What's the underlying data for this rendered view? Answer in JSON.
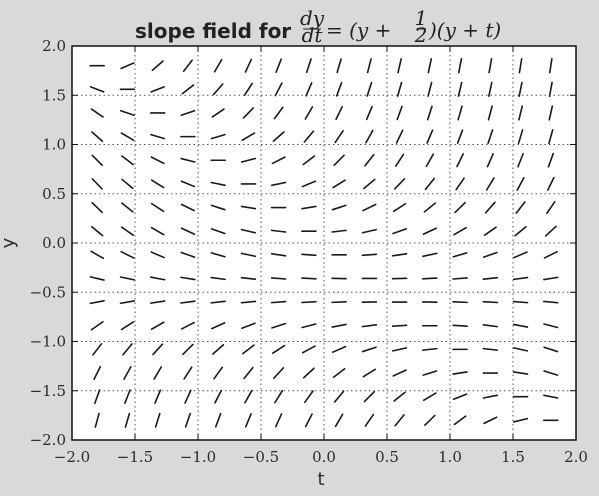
{
  "chart_data": {
    "type": "slope-field",
    "title_text": "slope field for",
    "title_equation": {
      "lhs_numerator": "dy",
      "lhs_denominator": "dt",
      "rhs_prefix": "= (y + ",
      "rhs_frac_numerator": "1",
      "rhs_frac_denominator": "2",
      "rhs_suffix": ")(y + t)"
    },
    "xlabel": "t",
    "ylabel": "y",
    "xlim": [
      -2.0,
      2.0
    ],
    "ylim": [
      -2.0,
      2.0
    ],
    "xticks": [
      -2.0,
      -1.5,
      -1.0,
      -0.5,
      0.0,
      0.5,
      1.0,
      1.5,
      2.0
    ],
    "xtick_labels": [
      "−2.0",
      "−1.5",
      "−1.0",
      "−0.5",
      "0.0",
      "0.5",
      "1.0",
      "1.5",
      "2.0"
    ],
    "yticks": [
      -2.0,
      -1.5,
      -1.0,
      -0.5,
      0.0,
      0.5,
      1.0,
      1.5,
      2.0
    ],
    "ytick_labels": [
      "−2.0",
      "−1.5",
      "−1.0",
      "−0.5",
      "0.0",
      "0.5",
      "1.0",
      "1.5",
      "2.0"
    ],
    "grid": true,
    "grid_style": "dotted",
    "field": {
      "expression": "(y + 0.5) * (y + t)",
      "t_start": -1.8,
      "t_end": 1.8,
      "t_count": 16,
      "y_start": -1.8,
      "y_end": 1.8,
      "y_count": 16
    },
    "colors": {
      "segment": "#1a1a1a",
      "plot_bg": "#ffffff",
      "figure_bg": "#d9d9d7",
      "grid": "#555555"
    }
  }
}
